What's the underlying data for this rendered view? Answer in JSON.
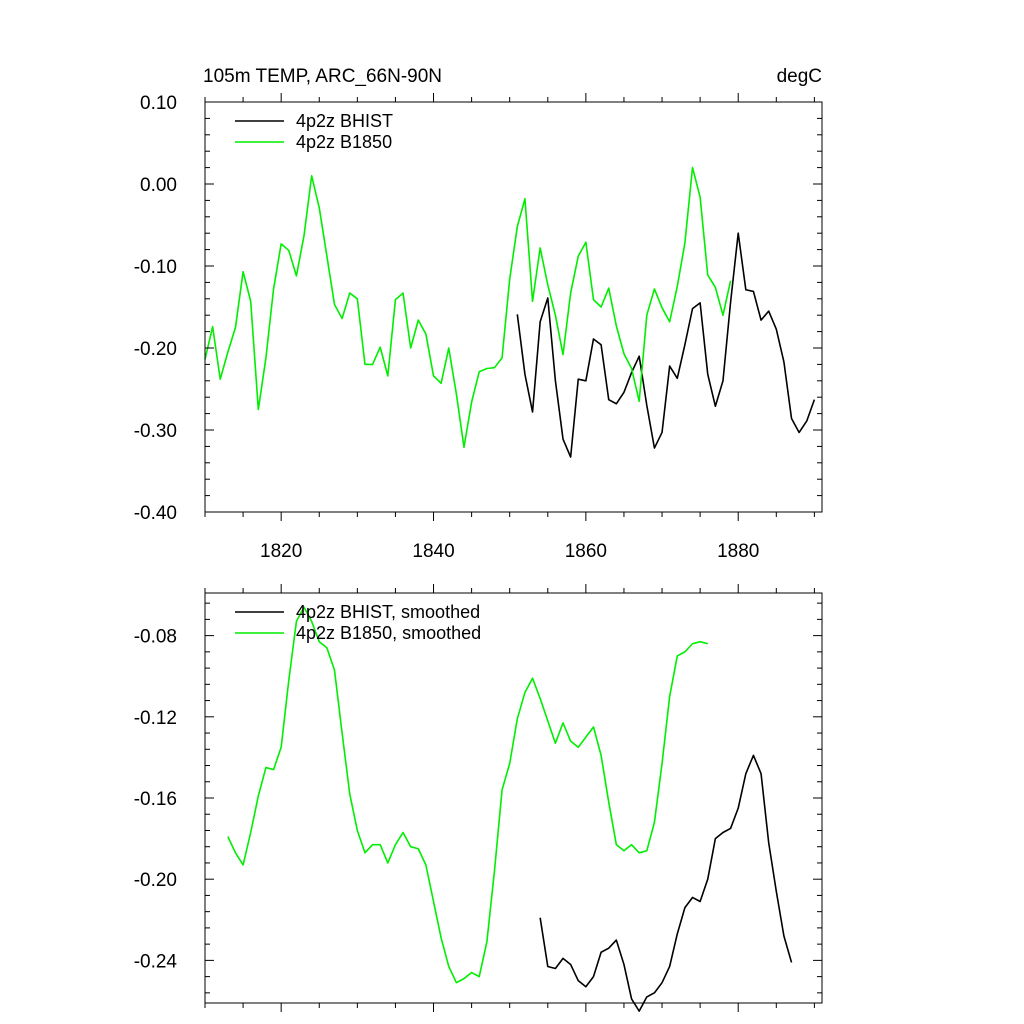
{
  "colors": {
    "bhist": "#000000",
    "b1850": "#00ee00",
    "axis": "#000000",
    "background": "#ffffff"
  },
  "chart_data": [
    {
      "type": "line",
      "title": "105m TEMP, ARC_66N-90N",
      "units": "degC",
      "xlabel": "",
      "ylabel": "",
      "xlim": [
        1810,
        1891
      ],
      "ylim": [
        -0.4,
        0.1
      ],
      "grid": false,
      "legend_position": "top-left",
      "xticks": [
        {
          "value": 1820,
          "label": "1820"
        },
        {
          "value": 1840,
          "label": "1840"
        },
        {
          "value": 1860,
          "label": "1860"
        },
        {
          "value": 1880,
          "label": "1880"
        }
      ],
      "yticks": [
        {
          "value": 0.1,
          "label": "0.10"
        },
        {
          "value": 0.0,
          "label": "0.00"
        },
        {
          "value": -0.1,
          "label": "-0.10"
        },
        {
          "value": -0.2,
          "label": "-0.20"
        },
        {
          "value": -0.3,
          "label": "-0.30"
        },
        {
          "value": -0.4,
          "label": "-0.40"
        }
      ],
      "series": [
        {
          "name": "4p2z BHIST",
          "color": "#000000",
          "x_start": 1851,
          "values": [
            -0.159,
            -0.232,
            -0.278,
            -0.168,
            -0.139,
            -0.24,
            -0.311,
            -0.333,
            -0.238,
            -0.24,
            -0.189,
            -0.196,
            -0.263,
            -0.268,
            -0.254,
            -0.23,
            -0.21,
            -0.27,
            -0.322,
            -0.303,
            -0.222,
            -0.237,
            -0.196,
            -0.152,
            -0.145,
            -0.232,
            -0.271,
            -0.24,
            -0.144,
            -0.06,
            -0.129,
            -0.131,
            -0.166,
            -0.155,
            -0.177,
            -0.217,
            -0.286,
            -0.303,
            -0.289,
            -0.263
          ]
        },
        {
          "name": "4p2z B1850",
          "color": "#00ee00",
          "x_start": 1810,
          "values": [
            -0.214,
            -0.174,
            -0.238,
            -0.205,
            -0.175,
            -0.107,
            -0.143,
            -0.275,
            -0.212,
            -0.128,
            -0.073,
            -0.081,
            -0.112,
            -0.063,
            0.01,
            -0.029,
            -0.088,
            -0.147,
            -0.164,
            -0.133,
            -0.14,
            -0.22,
            -0.22,
            -0.199,
            -0.234,
            -0.141,
            -0.133,
            -0.2,
            -0.166,
            -0.183,
            -0.234,
            -0.243,
            -0.2,
            -0.256,
            -0.321,
            -0.266,
            -0.229,
            -0.225,
            -0.224,
            -0.212,
            -0.116,
            -0.052,
            -0.018,
            -0.143,
            -0.078,
            -0.123,
            -0.16,
            -0.208,
            -0.133,
            -0.088,
            -0.071,
            -0.141,
            -0.15,
            -0.127,
            -0.173,
            -0.207,
            -0.225,
            -0.265,
            -0.16,
            -0.128,
            -0.151,
            -0.168,
            -0.125,
            -0.072,
            0.02,
            -0.016,
            -0.111,
            -0.126,
            -0.16,
            -0.118
          ]
        }
      ]
    },
    {
      "type": "line",
      "title": "",
      "xlabel": "",
      "ylabel": "",
      "xlim": [
        1810,
        1891
      ],
      "ylim": [
        -0.261,
        -0.059
      ],
      "grid": false,
      "legend_position": "top-left",
      "xticks": [
        {
          "value": 1820,
          "label": ""
        },
        {
          "value": 1840,
          "label": ""
        },
        {
          "value": 1860,
          "label": ""
        },
        {
          "value": 1880,
          "label": ""
        }
      ],
      "yticks": [
        {
          "value": -0.08,
          "label": "-0.08"
        },
        {
          "value": -0.12,
          "label": "-0.12"
        },
        {
          "value": -0.16,
          "label": "-0.16"
        },
        {
          "value": -0.2,
          "label": "-0.20"
        },
        {
          "value": -0.24,
          "label": "-0.24"
        }
      ],
      "series": [
        {
          "name": "4p2z BHIST, smoothed",
          "color": "#000000",
          "x_start": 1854,
          "values": [
            -0.219,
            -0.243,
            -0.244,
            -0.239,
            -0.242,
            -0.25,
            -0.253,
            -0.248,
            -0.236,
            -0.234,
            -0.23,
            -0.242,
            -0.259,
            -0.265,
            -0.258,
            -0.256,
            -0.251,
            -0.243,
            -0.227,
            -0.214,
            -0.209,
            -0.211,
            -0.2,
            -0.18,
            -0.177,
            -0.175,
            -0.165,
            -0.148,
            -0.139,
            -0.148,
            -0.182,
            -0.206,
            -0.228,
            -0.241
          ]
        },
        {
          "name": "4p2z B1850, smoothed",
          "color": "#00ee00",
          "x_start": 1813,
          "values": [
            -0.179,
            -0.187,
            -0.193,
            -0.177,
            -0.159,
            -0.145,
            -0.146,
            -0.135,
            -0.102,
            -0.073,
            -0.066,
            -0.073,
            -0.083,
            -0.086,
            -0.097,
            -0.128,
            -0.158,
            -0.176,
            -0.187,
            -0.183,
            -0.183,
            -0.192,
            -0.183,
            -0.177,
            -0.184,
            -0.185,
            -0.193,
            -0.211,
            -0.229,
            -0.243,
            -0.251,
            -0.249,
            -0.246,
            -0.248,
            -0.231,
            -0.196,
            -0.156,
            -0.143,
            -0.121,
            -0.108,
            -0.101,
            -0.111,
            -0.122,
            -0.133,
            -0.123,
            -0.132,
            -0.135,
            -0.13,
            -0.125,
            -0.139,
            -0.162,
            -0.183,
            -0.186,
            -0.183,
            -0.187,
            -0.186,
            -0.172,
            -0.143,
            -0.11,
            -0.09,
            -0.088,
            -0.084,
            -0.083,
            -0.084
          ]
        }
      ]
    }
  ]
}
